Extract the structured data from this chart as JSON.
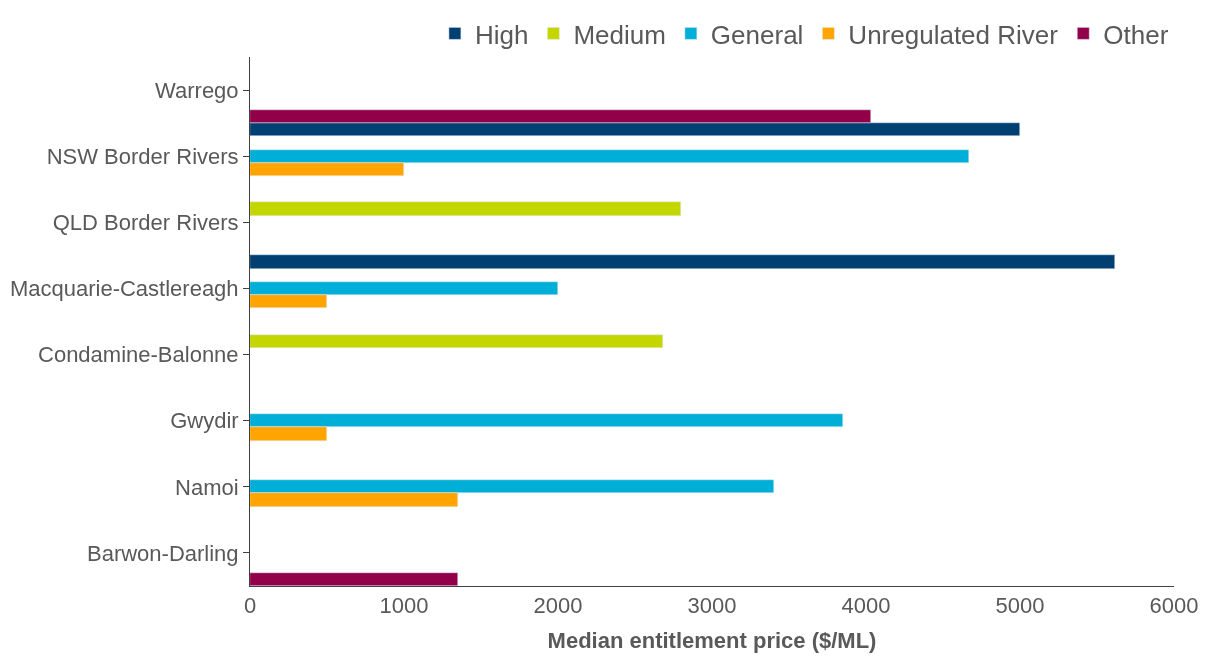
{
  "chart_data": {
    "type": "bar",
    "orientation": "horizontal",
    "xlabel": "Median entitlement price ($/ML)",
    "categories": [
      "Warrego",
      "NSW Border Rivers",
      "QLD Border Rivers",
      "Macquarie-Castlereagh",
      "Condamine-Balonne",
      "Gwydir",
      "Namoi",
      "Barwon-Darling"
    ],
    "series": [
      {
        "name": "High",
        "color": "#003f72",
        "values": [
          null,
          5000,
          null,
          5620,
          null,
          null,
          null,
          null
        ]
      },
      {
        "name": "Medium",
        "color": "#c4d600",
        "values": [
          null,
          null,
          2800,
          null,
          2680,
          null,
          null,
          null
        ]
      },
      {
        "name": "General",
        "color": "#00afd8",
        "values": [
          null,
          4670,
          null,
          2000,
          null,
          3850,
          3400,
          null
        ]
      },
      {
        "name": "Unregulated River",
        "color": "#ffa400",
        "values": [
          null,
          1000,
          null,
          500,
          null,
          500,
          1350,
          null
        ]
      },
      {
        "name": "Other",
        "color": "#93004a",
        "values": [
          4030,
          null,
          null,
          null,
          null,
          null,
          null,
          1350
        ]
      }
    ],
    "xlim": [
      0,
      6000
    ],
    "xticks": [
      0,
      1000,
      2000,
      3000,
      4000,
      5000,
      6000
    ],
    "legend": "top"
  }
}
